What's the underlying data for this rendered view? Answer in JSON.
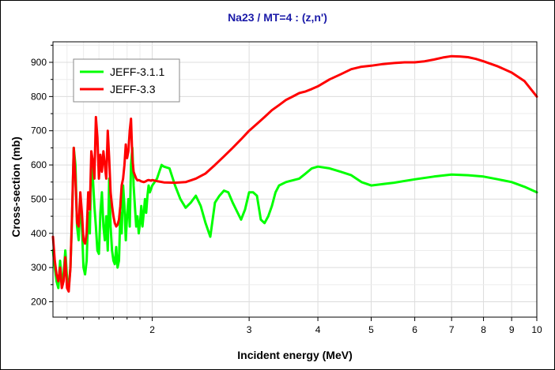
{
  "chart_data": {
    "type": "line",
    "title": "Na23 / MT=4 : (z,n')",
    "xlabel": "Incident energy (MeV)",
    "ylabel": "Cross-section (mb)",
    "x_scale": "log",
    "xlim": [
      1.32,
      10
    ],
    "ylim": [
      155,
      960
    ],
    "x_ticks": [
      {
        "value": 2,
        "label": "2"
      },
      {
        "value": 3,
        "label": "3"
      },
      {
        "value": 4,
        "label": "4"
      },
      {
        "value": 5,
        "label": "5"
      },
      {
        "value": 6,
        "label": "6"
      },
      {
        "value": 7,
        "label": "7"
      },
      {
        "value": 8,
        "label": "8"
      },
      {
        "value": 9,
        "label": "9"
      },
      {
        "value": 10,
        "label": "10"
      }
    ],
    "y_ticks": [
      {
        "value": 200,
        "label": "200"
      },
      {
        "value": 300,
        "label": "300"
      },
      {
        "value": 400,
        "label": "400"
      },
      {
        "value": 500,
        "label": "500"
      },
      {
        "value": 600,
        "label": "600"
      },
      {
        "value": 700,
        "label": "700"
      },
      {
        "value": 800,
        "label": "800"
      },
      {
        "value": 900,
        "label": "900"
      }
    ],
    "grid": true,
    "legend_position": "top-left",
    "series": [
      {
        "name": "JEFF-3.1.1",
        "color": "#00ff00",
        "x": [
          1.32,
          1.33,
          1.34,
          1.35,
          1.36,
          1.37,
          1.38,
          1.39,
          1.4,
          1.41,
          1.42,
          1.43,
          1.44,
          1.45,
          1.46,
          1.47,
          1.48,
          1.49,
          1.5,
          1.51,
          1.52,
          1.53,
          1.54,
          1.55,
          1.56,
          1.57,
          1.58,
          1.59,
          1.6,
          1.61,
          1.62,
          1.63,
          1.64,
          1.65,
          1.66,
          1.67,
          1.68,
          1.69,
          1.7,
          1.71,
          1.72,
          1.73,
          1.74,
          1.75,
          1.76,
          1.77,
          1.78,
          1.79,
          1.8,
          1.81,
          1.82,
          1.83,
          1.84,
          1.85,
          1.86,
          1.87,
          1.88,
          1.89,
          1.9,
          1.91,
          1.92,
          1.93,
          1.94,
          1.95,
          1.96,
          1.97,
          1.98,
          1.99,
          2.0,
          2.02,
          2.04,
          2.06,
          2.08,
          2.1,
          2.15,
          2.2,
          2.25,
          2.3,
          2.35,
          2.4,
          2.45,
          2.5,
          2.55,
          2.6,
          2.65,
          2.7,
          2.75,
          2.8,
          2.85,
          2.9,
          2.95,
          3.0,
          3.05,
          3.1,
          3.15,
          3.2,
          3.25,
          3.3,
          3.35,
          3.4,
          3.5,
          3.6,
          3.7,
          3.8,
          3.9,
          4.0,
          4.2,
          4.4,
          4.6,
          4.8,
          5.0,
          5.5,
          6.0,
          6.5,
          7.0,
          7.5,
          8.0,
          8.5,
          9.0,
          9.5,
          10.0
        ],
        "values": [
          350,
          300,
          260,
          240,
          320,
          260,
          280,
          350,
          270,
          240,
          300,
          450,
          650,
          600,
          420,
          380,
          500,
          420,
          300,
          280,
          320,
          460,
          400,
          600,
          560,
          480,
          420,
          350,
          340,
          460,
          520,
          420,
          380,
          450,
          350,
          560,
          420,
          350,
          320,
          310,
          360,
          300,
          320,
          460,
          400,
          540,
          480,
          380,
          450,
          500,
          420,
          600,
          650,
          540,
          480,
          420,
          450,
          400,
          430,
          480,
          420,
          460,
          500,
          460,
          510,
          540,
          520,
          530,
          540,
          550,
          560,
          580,
          600,
          595,
          590,
          540,
          500,
          475,
          490,
          510,
          480,
          430,
          390,
          490,
          510,
          525,
          520,
          490,
          465,
          440,
          470,
          520,
          520,
          510,
          440,
          430,
          450,
          480,
          520,
          540,
          550,
          555,
          560,
          575,
          590,
          595,
          590,
          580,
          570,
          550,
          540,
          548,
          558,
          566,
          572,
          570,
          566,
          558,
          550,
          536,
          520
        ]
      },
      {
        "name": "JEFF-3.3",
        "color": "#ff0000",
        "x": [
          1.32,
          1.33,
          1.34,
          1.35,
          1.36,
          1.37,
          1.38,
          1.39,
          1.4,
          1.41,
          1.42,
          1.43,
          1.44,
          1.45,
          1.46,
          1.47,
          1.48,
          1.49,
          1.5,
          1.51,
          1.52,
          1.53,
          1.54,
          1.55,
          1.56,
          1.57,
          1.58,
          1.59,
          1.6,
          1.61,
          1.62,
          1.63,
          1.64,
          1.65,
          1.66,
          1.67,
          1.68,
          1.69,
          1.7,
          1.71,
          1.72,
          1.73,
          1.74,
          1.75,
          1.76,
          1.77,
          1.78,
          1.79,
          1.8,
          1.81,
          1.82,
          1.83,
          1.84,
          1.85,
          1.86,
          1.87,
          1.88,
          1.89,
          1.9,
          1.91,
          1.92,
          1.93,
          1.94,
          1.95,
          1.96,
          1.97,
          1.98,
          1.99,
          2.0,
          2.05,
          2.1,
          2.2,
          2.3,
          2.4,
          2.5,
          2.6,
          2.7,
          2.8,
          2.9,
          3.0,
          3.1,
          3.2,
          3.3,
          3.4,
          3.5,
          3.6,
          3.7,
          3.8,
          3.9,
          4.0,
          4.2,
          4.4,
          4.6,
          4.8,
          5.0,
          5.25,
          5.5,
          5.75,
          6.0,
          6.25,
          6.5,
          6.75,
          7.0,
          7.25,
          7.5,
          7.75,
          8.0,
          8.5,
          9.0,
          9.5,
          10.0
        ],
        "values": [
          390,
          320,
          280,
          260,
          300,
          240,
          260,
          330,
          240,
          230,
          300,
          460,
          650,
          560,
          430,
          420,
          520,
          460,
          380,
          370,
          400,
          520,
          470,
          640,
          610,
          560,
          740,
          680,
          560,
          630,
          580,
          640,
          600,
          560,
          700,
          620,
          520,
          480,
          450,
          430,
          420,
          425,
          440,
          480,
          540,
          560,
          600,
          660,
          620,
          640,
          700,
          735,
          620,
          580,
          570,
          560,
          555,
          556,
          554,
          552,
          551,
          550,
          551,
          553,
          555,
          556,
          555,
          554,
          556,
          552,
          549,
          548,
          550,
          560,
          575,
          600,
          625,
          650,
          675,
          700,
          720,
          740,
          760,
          775,
          790,
          800,
          810,
          815,
          822,
          830,
          850,
          865,
          880,
          887,
          890,
          895,
          898,
          900,
          900,
          903,
          908,
          914,
          918,
          917,
          915,
          910,
          903,
          888,
          870,
          845,
          800
        ]
      }
    ]
  }
}
